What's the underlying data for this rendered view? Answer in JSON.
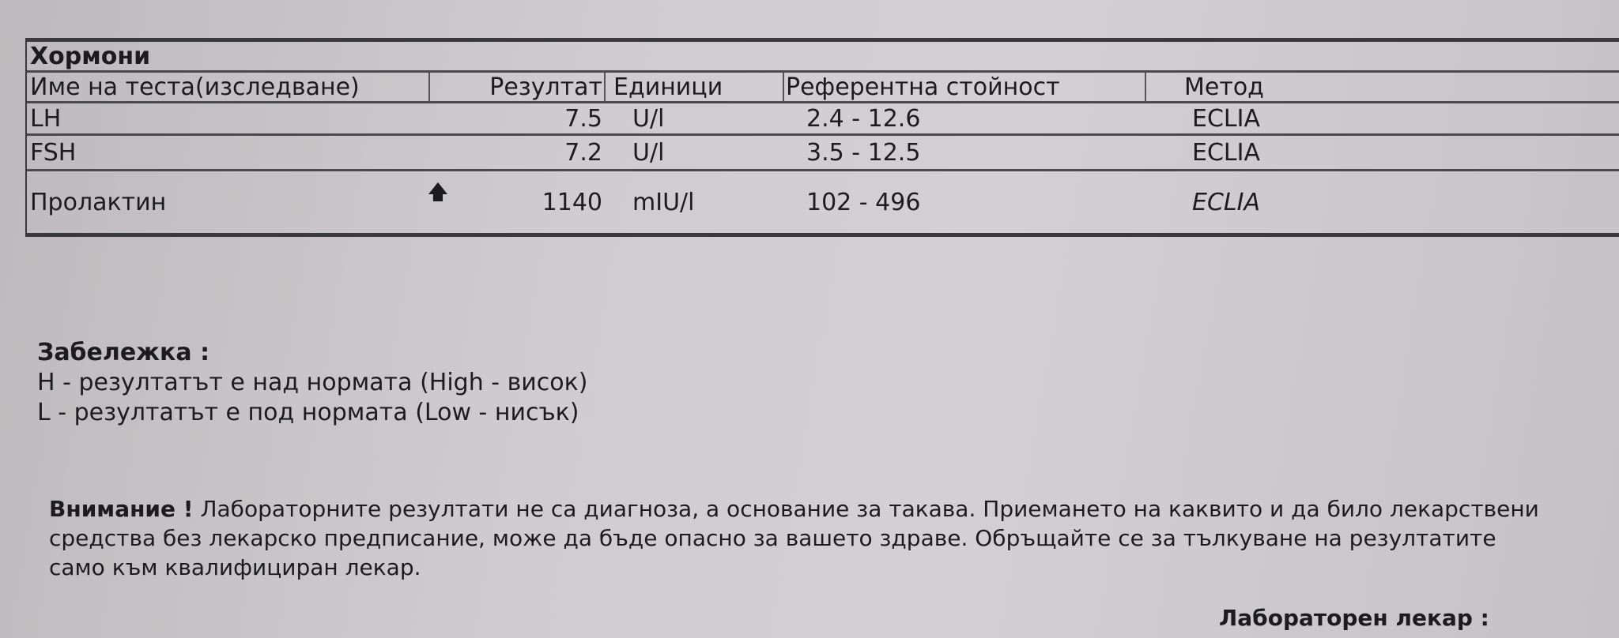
{
  "section_title": "Хормони",
  "columns": {
    "name": "Име на теста(изследване)",
    "result": "Резултат",
    "units": "Единици",
    "reference": "Референтна стойност",
    "method": "Метод"
  },
  "rows": [
    {
      "name": "LH",
      "flag": "",
      "result": "7.5",
      "units": "U/l",
      "reference": "2.4 - 12.6",
      "method": "ECLIA"
    },
    {
      "name": "FSH",
      "flag": "",
      "result": "7.2",
      "units": "U/l",
      "reference": "3.5 - 12.5",
      "method": "ECLIA"
    },
    {
      "name": "Пролактин",
      "flag": "🡅",
      "result": "1140",
      "units": "mIU/l",
      "reference": "102 - 496",
      "method": "ECLIA"
    }
  ],
  "note": {
    "heading": "Забележка :",
    "lines": [
      "H - резултатът е над нормата (High - висок)",
      "L - резултатът е под нормата (Low - нисък)"
    ]
  },
  "warning": {
    "label": "Внимание !",
    "text": "Лабораторните резултати не са диагноза, а основание за такава. Приемането на каквито и да било лекарствени средства без лекарско предписание, може да бъде опасно за вашето здраве. Обръщайте се за тълкуване на резултатите само към квалифициран лекар."
  },
  "doctor_label": "Лабораторен лекар :"
}
